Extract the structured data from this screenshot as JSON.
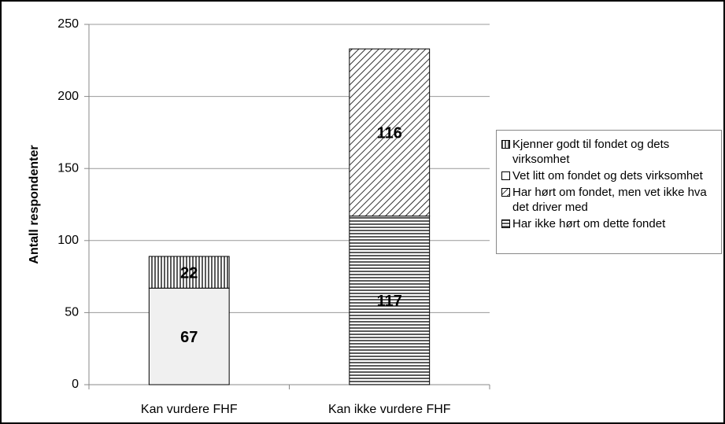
{
  "chart_data": {
    "type": "stacked_bar",
    "y_label": "Antall respondenter",
    "categories": [
      "Kan vurdere FHF",
      "Kan ikke vurdere FHF"
    ],
    "series": [
      {
        "name": "Har ikke hørt om dette fondet",
        "pattern": "horizontal",
        "values": [
          null,
          117
        ]
      },
      {
        "name": "Har hørt om fondet, men vet ikke hva det driver med",
        "pattern": "diagonal",
        "values": [
          null,
          116
        ]
      },
      {
        "name": "Vet litt om fondet og dets virksomhet",
        "pattern": "plain",
        "values": [
          67,
          null
        ]
      },
      {
        "name": "Kjenner godt til fondet og dets virksomhet",
        "pattern": "vertical",
        "values": [
          22,
          null
        ]
      }
    ],
    "ylim": [
      0,
      250
    ],
    "yticks": [
      0,
      50,
      100,
      150,
      200,
      250
    ],
    "grid": true,
    "legend": "right"
  }
}
